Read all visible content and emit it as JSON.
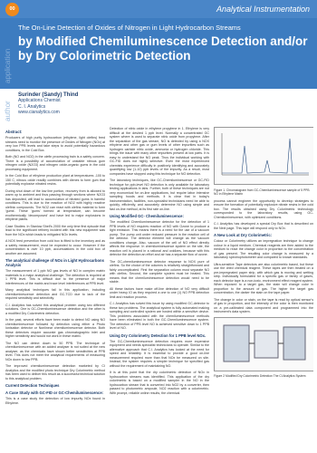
{
  "header": {
    "page_number": "00",
    "section": "Analytical Instrumentation"
  },
  "side_labels": {
    "top": "application",
    "author": "author"
  },
  "title": {
    "subtitle": "The On-Line Detection of Oxides of Nitrogen in Light Hydrocarbon Streams",
    "main": "by Modified Chemiluminescence Detection and/or by Dry Colorimetric Detection"
  },
  "author": {
    "name": "Surinder (Sandy) Thind",
    "role": "Applications Chemist",
    "company": "C. I. Analytics",
    "website": "www.cianalytics.com"
  },
  "columns": [
    [
      {
        "kind": "h",
        "text": "Abstract:"
      },
      {
        "kind": "p",
        "text": "Producers of high purity hydrocarbon (ethylene, light olefins) feed streams need to monitor the presence of Oxides of Nitrogen (NOx) at very low PPB levels and take steps to avoid potentially hazardous conditions, in the Cold Box."
      },
      {
        "kind": "p",
        "text": "Both (NO and NO2) in the olefin processing train is a safety concern. There is a possibility of accumulation of unstable nitrous gum nitrogen oxide (N2O3) and nitrogen oxide-organic gums in the cold processing equipment."
      },
      {
        "kind": "p",
        "text": "In the Cold Box of ethylene production plant at temperatures -100 to 150 C, nitrous oxide readily combines with dienes to form gum that potentially explosive nitrated resins."
      },
      {
        "kind": "p",
        "text": "During shut down of the low line portion, recovery from is allowed to warm up to ambient and thus passing through sections where N2O3 has deposited, will lead to accumulation of nitrated gums in harmful conditions. This is due to the reaction of NO2 with highly reactive olefinic compounds. The NO2 can react with olefins material to form 'gums'. These 'gums' formed at temperature, can become exothermically 'decomposed' and have led to major explosions in ethylene plants."
      },
      {
        "kind": "p",
        "text": "Case Studies: In Stanlow Shell's 2000 the only time first episode that lead to the significant refinery incident with this new equipment was from the NOx which leads to mitigated NOx levels."
      },
      {
        "kind": "p",
        "text": "A NOX feed prevention from cold box is fitted to the inventory and as a safety measurement, must be expected to occur. However if the concentration is over 10 ppb, accumulations in the cold box of another are assumed."
      },
      {
        "kind": "h",
        "text": "The analytical challenge of NOx in Light Hydrocarbons Analysis"
      },
      {
        "kind": "p",
        "text": "The measurement of 1 ppb NO gas levels of NO in complex matrix materials is a major analytical challenge. The detection is required at 1 PPB level. This is difficult due to the presence of major interferences of the matrix and trace level interferences at PPB level."
      },
      {
        "kind": "p",
        "text": "Many analytical techniques fail in this application, including chemiluminescence detection and GC-TCD due to lack of the required sensitivity and selectivity."
      },
      {
        "kind": "p",
        "text": "C.I. Analytics has solved this analytical problem using two different solutions. One is GC-Chemiluminescence detection and the other is a modified Dry Colorimetric detection."
      },
      {
        "kind": "p",
        "text": "In the past, several efforts have been made to detect NO using NO chemiluminescence followed by detection using either a Photo Ionisation detector or Nonlinear chemiluminescence detector. Both these detectors require accurate gas chromatographic inlet and higher sensitivity and would not work in these matrix."
      },
      {
        "kind": "p",
        "text": "The NO can detect down to 50 PPB. The technique of chemiluminescence with an added analyser is not suited at the new analyser, as the chemicals have shown better sensitivities at PPB level. This does not meet the analytical requirements of measuring NOx down to low PPB."
      },
      {
        "kind": "p",
        "text": "The improved chemiluminescence detection marketed by CI Analytics and the modified photo technique Dry Colorimetric method has been used to deliver this result as a successful technical solution to this analytical problem."
      },
      {
        "kind": "h",
        "text": "Current Detection Techniques"
      },
      {
        "kind": "h",
        "text": "A Case Study with GC-FID or GC-Chemiluminescence:"
      },
      {
        "kind": "p",
        "text": "This is a case study the detection of low impurity NOx found in Ethylene."
      }
    ],
    [
      {
        "kind": "p",
        "text": "Detection of nitric oxide in ethylene propylene in 1. Ethylene is very difficult at the desired 1 ppb level. Normally a concentrated GC system where is used to separate nitric oxide from propylene. After the separation of the gas stream, NO is detected by using a NOX ethylene and other gas or gum levels of other impurities such as hydrogen carbide nitric oxide, ammonia or hydrogen chloride. This brings the issue with many other impurities present at low parts. It is easy to understand the NO peak. Thus the individual working with GC-FID does not highly selective. Even the most experienced chemists experience difficulty in positively identifying and accurately quantifying low (1-10) ppb levels of the impurity. As a result, most companies have stopped using this technique for NO detection."
      },
      {
        "kind": "p",
        "text": "The laboratory techniques, like GC-Chemiluminescence or GC-FID technique for ppb-level NO detection is only available for laboratory testing applications in labs. Further, both of these techniques are not very economical for on-line applications, but require labor intensive sampling hoods and methods. It is clear that in today's instrumentation, facilities, non-specialist technicians need be able to quickly, efficiently, and accurately determine NO using simple and fast on-line method, at its first rate on-line."
      },
      {
        "kind": "h",
        "text": "Using Modified GC- Chemiluminescence:"
      },
      {
        "kind": "p",
        "text": "The modified Chemiluminescence detector for the detection of 1 PPB levels of NO requires reaction of NO with Ozone to produce a light emission. This means there is a need for the use of a vacuum pump. The pump unit under reduced pressure in the reaction cell of the detector. The detector element will change as the vacuum conditions change. Also, vacuum of the cell of NO effect directly affects the response. In chemiluminescence system on the site, the reaction cell is placed in a rational and oxidizes, because with this detector the detection an effort and air has a separate flow of ozone."
      },
      {
        "kind": "p",
        "text": "The GC-chemiluminescence detector response to NOX pure of olefins. So the choice of the columns is relatively straightforward and fairly uncomplicated. First the separation column must separate NO with olefins. Second, the complete system must be heated. This means that the chemiluminescence detection would need to be stable."
      },
      {
        "kind": "p",
        "text": "All these factors have make off-line detection of NO very difficult under heavy IO as they required a one to one (1) NO PPB detection limit and reaction process."
      },
      {
        "kind": "p",
        "text": "C.I. Analytics has solved this issue by using modified GC-detector to these two problems. The analytical system is fully automated making sampling and controlled system are hosted within a sensitive device. This problems associated with the chemiluminescence methods have been eliminated in both the GC-Chemiluminescence system. The detection of PPB level NO is achieved sensitive down to 1 PPB level of NO."
      },
      {
        "kind": "h",
        "text": "Using Dry Colorimetry Detection for 1 PPB level NOx."
      },
      {
        "kind": "p",
        "text": "The GC-Chemiluminescence detection requires more expensive equipment and needs specialist technicians to operate. Similar to the alternative approach that C.I. Analytics has looked at the need for speed and reliability. It is essential to provide a good on-line measurement required more than that NOx be measured on site. Instead, the system requires a simpler technique for specified gas without the requirement of maintaining NO."
      },
      {
        "kind": "p",
        "text": "It is at this point that the dry colorimetric detection of NOx in hydrocarbon streams was identified. This application of the dry colorimetric is based on a modified sampler in the NO in the hydrocarbon stream that is converted into NO2 by a converter, then passed to photometric ampoule, NO2 reaction with a colorimetric. With prompt, reliable online results, the chemical"
      }
    ],
    [
      {
        "kind": "figure",
        "ref": "figure1"
      },
      {
        "kind": "p",
        "text": "process cannot engineer the opportunity to develop strategies to ensure the formation of potentially explosive nitrate resins in the cold box. The results obtained using Dry Colorimetric technology corresponded to the laboratory results, using GC-Chemiluminescence, with optimized conditions."
      },
      {
        "kind": "p",
        "text": "C.I. Analytics has developed a special Dry Box that is described on the Next page. This tape will respond only to NOx."
      },
      {
        "kind": "h",
        "text": "A New Look at Dry Colorimetric:"
      },
      {
        "kind": "p",
        "text": "Colour or Colorimetry utilizes an impregnation technique to change colour in a liquid medium. Chemical reagents are then added to the medium to react the change color in proportion to the concentration of gas present. The resulting color change is measured by a laboratory spectrophotometer and compared to known standards."
      },
      {
        "kind": "p",
        "text": "Ultra-sensitive Tape detectors are also colorimetric based, but these use the dried chemical reagent. These tapes are then treated on a pre-impregnated paper strip, with which gas is moving and wetting strip. Individually formulated for a specific gas or family of gases, each detector tape is a non-toxic, environment effect reagent system. When exposed to a target gas, the stain will change color in proportion to the amount of gas. The higher the target gas concentration, the darker the stain on the tape paper."
      },
      {
        "kind": "p",
        "text": "The change in color or stain, on the tape is read by optical sensor's of gas in proportion, and the intensity of the color is then monitored on a pre-calibrated data component and programmed into the instrument's data system."
      },
      {
        "kind": "figure",
        "ref": "figure2"
      }
    ]
  ],
  "figure1": {
    "caption": "Figure 1. Chromatogram from GC-Chemiluminescence sample of 5 PPB NO in Ethylene Matrix"
  },
  "figure2": {
    "caption": "Figure 2 Modified Dry Colorimetric Detection The CI Analytics System"
  }
}
